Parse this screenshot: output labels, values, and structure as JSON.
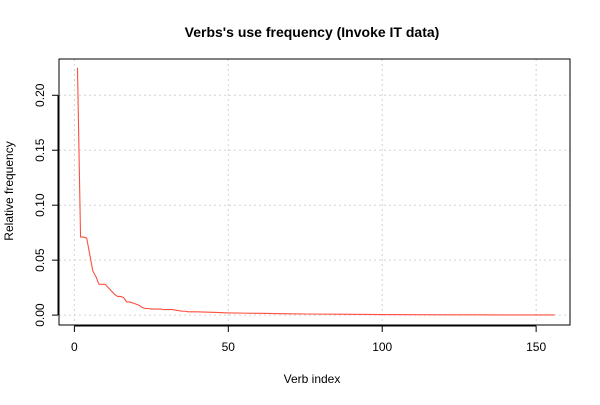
{
  "chart_data": {
    "type": "line",
    "title": "Verbs's use frequency (Invoke IT data)",
    "xlabel": "Verb index",
    "ylabel": "Relative frequency",
    "xlim": [
      -5,
      161
    ],
    "ylim": [
      -0.009,
      0.233
    ],
    "x_ticks": [
      0,
      50,
      100,
      150
    ],
    "y_ticks": [
      0.0,
      0.05,
      0.1,
      0.15,
      0.2
    ],
    "x_tick_labels": [
      "0",
      "50",
      "100",
      "150"
    ],
    "y_tick_labels": [
      "0.00",
      "0.05",
      "0.10",
      "0.15",
      "0.20"
    ],
    "grid": true,
    "legend": "none",
    "series_color": "#ff4f3f",
    "grid_color": "#d3d3d3",
    "series": [
      {
        "x": [
          1,
          2,
          3,
          4,
          5,
          6,
          7,
          8,
          9,
          10,
          11,
          12,
          13,
          14,
          15,
          16,
          17,
          18,
          19,
          20,
          21,
          22,
          23,
          24,
          25,
          26,
          27,
          28,
          29,
          30,
          31,
          32,
          33,
          34,
          35,
          36,
          37,
          38,
          39,
          40,
          42,
          45,
          48,
          50,
          55,
          60,
          65,
          70,
          75,
          80,
          85,
          90,
          95,
          100,
          110,
          120,
          130,
          140,
          150,
          156
        ],
        "y": [
          0.225,
          0.071,
          0.071,
          0.07,
          0.055,
          0.04,
          0.035,
          0.028,
          0.028,
          0.028,
          0.025,
          0.022,
          0.019,
          0.017,
          0.017,
          0.016,
          0.012,
          0.012,
          0.011,
          0.01,
          0.009,
          0.007,
          0.006,
          0.006,
          0.0055,
          0.0055,
          0.0055,
          0.0055,
          0.005,
          0.005,
          0.005,
          0.005,
          0.0045,
          0.004,
          0.0035,
          0.0035,
          0.003,
          0.003,
          0.003,
          0.003,
          0.0028,
          0.0025,
          0.0022,
          0.002,
          0.0018,
          0.0016,
          0.0014,
          0.0012,
          0.001,
          0.0009,
          0.0008,
          0.0007,
          0.0006,
          0.0005,
          0.0004,
          0.0003,
          0.0003,
          0.0002,
          0.0002,
          0.0002
        ]
      }
    ]
  }
}
